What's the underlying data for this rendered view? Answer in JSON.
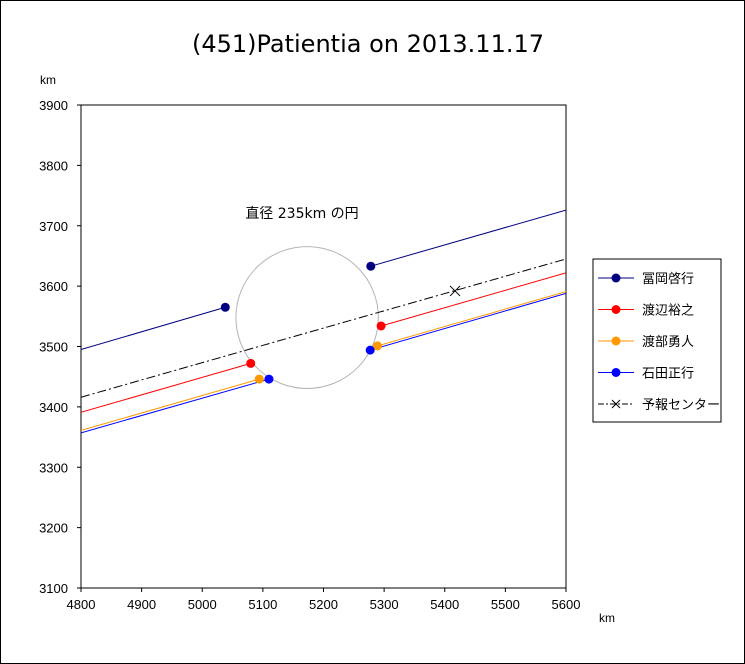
{
  "chart_data": {
    "type": "line",
    "title": "(451)Patientia on 2013.11.17",
    "xlabel": "km",
    "ylabel": "km",
    "xlim": [
      4800,
      5600
    ],
    "ylim": [
      3100,
      3900
    ],
    "xticks": [
      4800,
      4900,
      5000,
      5100,
      5200,
      5300,
      5400,
      5500,
      5600
    ],
    "yticks": [
      3100,
      3200,
      3300,
      3400,
      3500,
      3600,
      3700,
      3800,
      3900
    ],
    "grid": false,
    "legend_position": "right",
    "annotation": "直径 235km の円",
    "circle": {
      "center": [
        5173,
        3548
      ],
      "diameter": 235,
      "color": "#b4b4b4"
    },
    "series": [
      {
        "name": "冨岡啓行",
        "color": "#000080",
        "segments": [
          [
            [
              4800,
              3495
            ],
            [
              5038,
              3565
            ]
          ],
          [
            [
              5278,
              3633
            ],
            [
              5600,
              3726
            ]
          ]
        ],
        "markers": [
          [
            5038,
            3565
          ],
          [
            5278,
            3633
          ]
        ]
      },
      {
        "name": "渡辺裕之",
        "color": "#ff0000",
        "segments": [
          [
            [
              4800,
              3391
            ],
            [
              5080,
              3472
            ]
          ],
          [
            [
              5295,
              3534
            ],
            [
              5600,
              3622
            ]
          ]
        ],
        "markers": [
          [
            5080,
            3472
          ],
          [
            5295,
            3534
          ]
        ]
      },
      {
        "name": "渡部勇人",
        "color": "#ff9900",
        "segments": [
          [
            [
              4800,
              3361
            ],
            [
              5094,
              3446
            ]
          ],
          [
            [
              5289,
              3501
            ],
            [
              5600,
              3591
            ]
          ]
        ],
        "markers": [
          [
            5094,
            3446
          ],
          [
            5289,
            3501
          ]
        ]
      },
      {
        "name": "石田正行",
        "color": "#0000ff",
        "segments": [
          [
            [
              4800,
              3357
            ],
            [
              5110,
              3446
            ]
          ],
          [
            [
              5277,
              3494
            ],
            [
              5600,
              3588
            ]
          ]
        ],
        "markers": [
          [
            5110,
            3446
          ],
          [
            5277,
            3494
          ]
        ]
      },
      {
        "name": "予報センター",
        "color": "#000000",
        "dash": "dashdot",
        "segments": [
          [
            [
              4800,
              3416
            ],
            [
              5600,
              3645
            ]
          ]
        ],
        "cross_marker": [
          5417,
          3592
        ]
      }
    ]
  }
}
